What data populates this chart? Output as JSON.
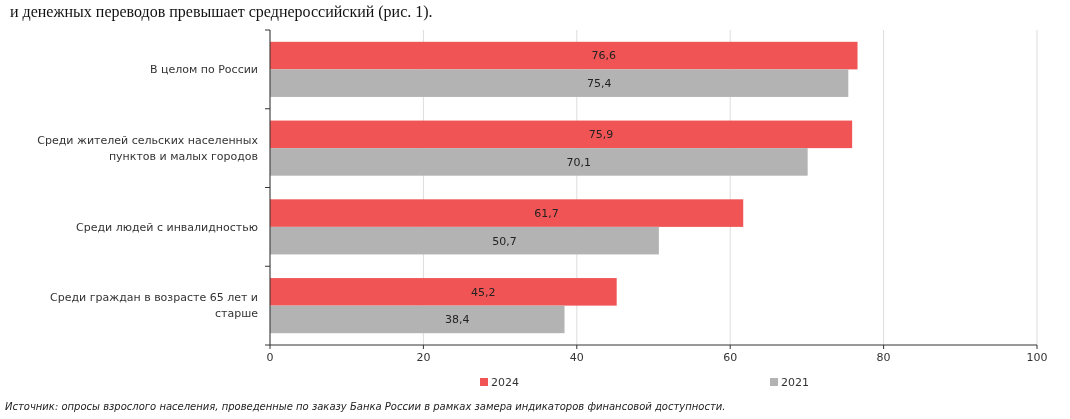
{
  "chart_data": {
    "type": "bar",
    "orientation": "horizontal",
    "categories": [
      "В целом по России",
      "Среди жителей сельских населенных пунктов и малых городов",
      "Среди людей с инвалидностью",
      "Среди граждан в возрасте 65 лет и старше"
    ],
    "series": [
      {
        "name": "2024",
        "color": "#f05455",
        "values": [
          76.6,
          75.9,
          61.7,
          45.2
        ],
        "value_labels": [
          "76,6",
          "75,9",
          "61,7",
          "45,2"
        ]
      },
      {
        "name": "2021",
        "color": "#b3b3b3",
        "values": [
          75.4,
          70.1,
          50.7,
          38.4
        ],
        "value_labels": [
          "75,4",
          "70,1",
          "50,7",
          "38,4"
        ]
      }
    ],
    "xlim": [
      0,
      100
    ],
    "xticks": [
      0,
      20,
      40,
      60,
      80,
      100
    ],
    "grid": "x",
    "legend": "bottom",
    "annotations": [
      "и денежных переводов превышает среднероссийский (рис. 1).",
      "Источник: опросы взрослого населения, проведенные по заказу Банка России в рамках замера индикаторов финансовой доступности."
    ]
  }
}
